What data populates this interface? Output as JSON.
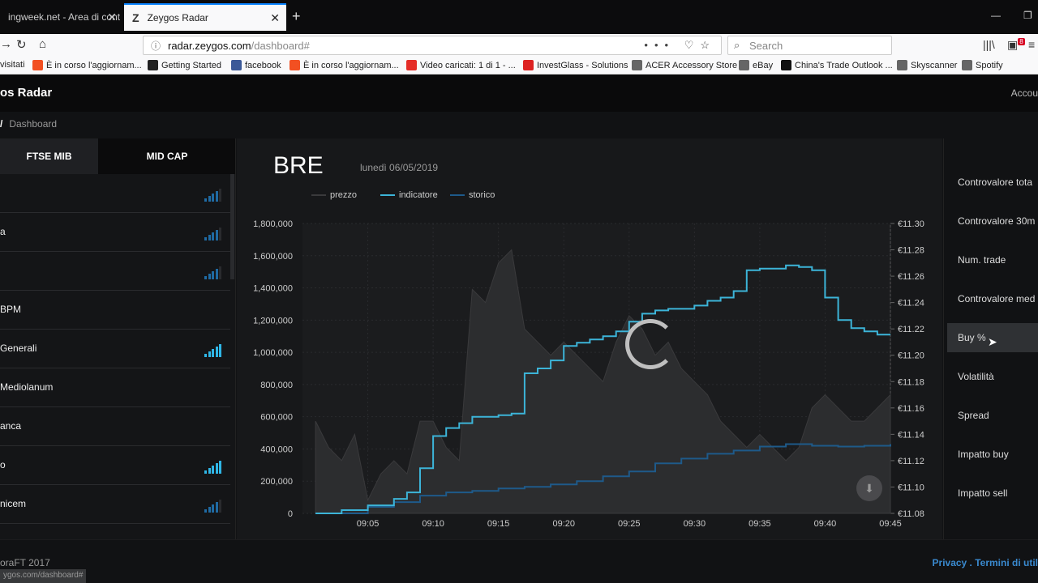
{
  "browser": {
    "tab_inactive": "ingweek.net - Area di cont",
    "tab_active": "Zeygos Radar",
    "url_host": "radar.zeygos.com",
    "url_path": "/dashboard#",
    "search_placeholder": "Search",
    "notification_badge": "8",
    "bookmarks": [
      {
        "label": "visitati",
        "icon": "folder-icon",
        "color": "#f9f9fa"
      },
      {
        "label": "È in corso l'aggiornam...",
        "icon": "windows-icon",
        "color": "#f25022"
      },
      {
        "label": "Getting Started",
        "icon": "m-icon",
        "color": "#222222"
      },
      {
        "label": "facebook",
        "icon": "facebook-icon",
        "color": "#3b5998"
      },
      {
        "label": "È in corso l'aggiornam...",
        "icon": "windows-icon",
        "color": "#f25022"
      },
      {
        "label": "Video caricati: 1 di 1 - ...",
        "icon": "youtube-icon",
        "color": "#e52d27"
      },
      {
        "label": "InvestGlass - Solutions",
        "icon": "investglass-icon",
        "color": "#d22"
      },
      {
        "label": "ACER Accessory Store",
        "icon": "globe-icon",
        "color": "#666"
      },
      {
        "label": "eBay",
        "icon": "globe-icon",
        "color": "#666"
      },
      {
        "label": "China's Trade Outlook ...",
        "icon": "b-icon",
        "color": "#111"
      },
      {
        "label": "Skyscanner",
        "icon": "globe-icon",
        "color": "#666"
      },
      {
        "label": "Spotify",
        "icon": "globe-icon",
        "color": "#666"
      }
    ],
    "status_url": "ygos.com/dashboard#"
  },
  "app": {
    "brand": "os Radar",
    "account": "Accou",
    "breadcrumb_sep": "/",
    "breadcrumb": "Dashboard",
    "tabs": [
      "FTSE MIB",
      "MID CAP"
    ],
    "stocks": [
      {
        "name": "",
        "level": 4,
        "bright": false
      },
      {
        "name": "a",
        "level": 4,
        "bright": false
      },
      {
        "name": "",
        "level": 4,
        "bright": false
      },
      {
        "name": "BPM",
        "level": 0,
        "bright": false
      },
      {
        "name": "Generali",
        "level": 5,
        "bright": true
      },
      {
        "name": "Mediolanum",
        "level": 0,
        "bright": false
      },
      {
        "name": "anca",
        "level": 0,
        "bright": false
      },
      {
        "name": "o",
        "level": 5,
        "bright": true
      },
      {
        "name": "nicem",
        "level": 4,
        "bright": false
      }
    ],
    "ticker": "BRE",
    "date": "lunedì 06/05/2019",
    "metrics": [
      "Controvalore tota",
      "Controvalore 30m",
      "Num. trade",
      "Controvalore med",
      "Buy %",
      "Volatilità",
      "Spread",
      "Impatto buy",
      "Impatto sell"
    ],
    "active_metric": "Buy %",
    "footer_copy": "oraFT 2017",
    "footer_links": "Privacy . Termini di util"
  },
  "chart_data": {
    "type": "line",
    "series": [
      {
        "name": "prezzo",
        "color": "#3a3a3c",
        "axis": "right",
        "x": [
          "09:01",
          "09:02",
          "09:03",
          "09:04",
          "09:05",
          "09:06",
          "09:07",
          "09:08",
          "09:09",
          "09:10",
          "09:11",
          "09:12",
          "09:13",
          "09:14",
          "09:15",
          "09:16",
          "09:17",
          "09:18",
          "09:19",
          "09:20",
          "09:21",
          "09:22",
          "09:23",
          "09:24",
          "09:25",
          "09:26",
          "09:27",
          "09:28",
          "09:29",
          "09:30",
          "09:31",
          "09:32",
          "09:33",
          "09:34",
          "09:35",
          "09:36",
          "09:37",
          "09:38",
          "09:39",
          "09:40",
          "09:41",
          "09:42",
          "09:43",
          "09:44",
          "09:45"
        ],
        "values": [
          11.15,
          11.13,
          11.12,
          11.14,
          11.09,
          11.11,
          11.12,
          11.11,
          11.15,
          11.15,
          11.13,
          11.12,
          11.25,
          11.24,
          11.27,
          11.28,
          11.22,
          11.21,
          11.2,
          11.21,
          11.2,
          11.19,
          11.18,
          11.21,
          11.23,
          11.22,
          11.2,
          11.21,
          11.19,
          11.18,
          11.17,
          11.15,
          11.14,
          11.13,
          11.14,
          11.13,
          11.12,
          11.13,
          11.16,
          11.17,
          11.16,
          11.15,
          11.15,
          11.16,
          11.17
        ]
      },
      {
        "name": "indicatore",
        "color": "#3cb4d8",
        "axis": "left",
        "x": [
          "09:01",
          "09:03",
          "09:05",
          "09:07",
          "09:08",
          "09:09",
          "09:10",
          "09:11",
          "09:12",
          "09:13",
          "09:15",
          "09:16",
          "09:17",
          "09:18",
          "09:19",
          "09:20",
          "09:21",
          "09:22",
          "09:23",
          "09:24",
          "09:25",
          "09:26",
          "09:27",
          "09:28",
          "09:30",
          "09:31",
          "09:32",
          "09:33",
          "09:34",
          "09:35",
          "09:36",
          "09:37",
          "09:38",
          "09:39",
          "09:40",
          "09:41",
          "09:42",
          "09:43",
          "09:44",
          "09:45"
        ],
        "values": [
          0,
          20000,
          50000,
          90000,
          130000,
          280000,
          480000,
          530000,
          560000,
          600000,
          610000,
          620000,
          870000,
          900000,
          950000,
          1040000,
          1060000,
          1080000,
          1100000,
          1130000,
          1190000,
          1240000,
          1260000,
          1270000,
          1290000,
          1320000,
          1340000,
          1380000,
          1510000,
          1520000,
          1520000,
          1540000,
          1530000,
          1510000,
          1340000,
          1200000,
          1150000,
          1130000,
          1110000,
          1110000
        ]
      },
      {
        "name": "storico",
        "color": "#1e5a8a",
        "axis": "left",
        "x": [
          "09:01",
          "09:05",
          "09:07",
          "09:09",
          "09:11",
          "09:13",
          "09:15",
          "09:17",
          "09:19",
          "09:21",
          "09:23",
          "09:25",
          "09:27",
          "09:29",
          "09:31",
          "09:33",
          "09:35",
          "09:37",
          "09:39",
          "09:41",
          "09:43",
          "09:45"
        ],
        "values": [
          0,
          40000,
          70000,
          110000,
          130000,
          140000,
          155000,
          165000,
          180000,
          200000,
          230000,
          260000,
          310000,
          340000,
          370000,
          390000,
          415000,
          430000,
          420000,
          415000,
          420000,
          430000
        ]
      }
    ],
    "y_left_ticks": [
      "0",
      "200,000",
      "400,000",
      "600,000",
      "800,000",
      "1,000,000",
      "1,200,000",
      "1,400,000",
      "1,600,000",
      "1,800,000"
    ],
    "ylim_left": [
      0,
      1800000
    ],
    "y_right_ticks": [
      "€11.08",
      "€11.10",
      "€11.12",
      "€11.14",
      "€11.16",
      "€11.18",
      "€11.20",
      "€11.22",
      "€11.24",
      "€11.26",
      "€11.28",
      "€11.30"
    ],
    "ylim_right": [
      11.08,
      11.3
    ],
    "x_ticks": [
      "09:05",
      "09:10",
      "09:15",
      "09:20",
      "09:25",
      "09:30",
      "09:35",
      "09:40",
      "09:45"
    ],
    "xlim_minutes": [
      60.0,
      105.0
    ],
    "grid": true,
    "legend": "top-left"
  }
}
